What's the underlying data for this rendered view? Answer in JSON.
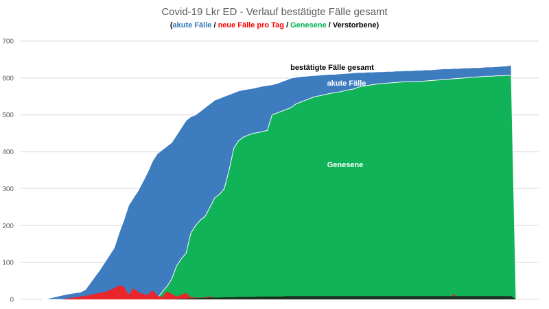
{
  "chart_data": {
    "type": "area",
    "title": "Covid-19 Lkr ED - Verlauf bestätigte Fälle gesamt",
    "subtitle": [
      {
        "text": "(",
        "color": "#000000"
      },
      {
        "text": "akute Fälle",
        "color": "#2e75b6"
      },
      {
        "text": " / ",
        "color": "#000000"
      },
      {
        "text": "neue Fälle pro Tag",
        "color": "#ff0000"
      },
      {
        "text": " / ",
        "color": "#000000"
      },
      {
        "text": "Genesene",
        "color": "#00b050"
      },
      {
        "text": " / ",
        "color": "#000000"
      },
      {
        "text": "Verstorbene",
        "color": "#000000"
      },
      {
        "text": ")",
        "color": "#000000"
      }
    ],
    "ylim": [
      0,
      700
    ],
    "yticks": [
      0,
      100,
      200,
      300,
      400,
      500,
      600,
      700
    ],
    "grid": true,
    "x_count": 100,
    "colors": {
      "total": "#3e7cc0",
      "recovered": "#10b357",
      "new": "#e8262b",
      "deaths": "#1b3320",
      "grid": "#d9d9d9"
    },
    "labels": {
      "total": "bestätigte Fälle gesamt",
      "active": "akute Fälle",
      "recovered": "Genesene"
    },
    "series": [
      {
        "key": "total",
        "values": [
          0,
          2,
          5,
          8,
          11,
          14,
          16,
          18,
          20,
          27,
          45,
          63,
          80,
          100,
          120,
          140,
          180,
          215,
          255,
          275,
          295,
          320,
          345,
          375,
          395,
          405,
          415,
          425,
          445,
          465,
          485,
          495,
          500,
          510,
          520,
          530,
          540,
          545,
          550,
          555,
          560,
          565,
          568,
          570,
          572,
          575,
          578,
          580,
          582,
          585,
          590,
          595,
          600,
          602,
          604,
          605,
          606,
          607,
          608,
          609,
          610,
          610,
          611,
          612,
          613,
          614,
          615,
          615,
          616,
          616,
          617,
          617,
          618,
          618,
          619,
          619,
          620,
          620,
          621,
          621,
          622,
          622,
          623,
          624,
          625,
          625,
          626,
          626,
          627,
          627,
          628,
          628,
          629,
          630,
          630,
          631,
          632,
          633,
          635,
          0
        ]
      },
      {
        "key": "recovered",
        "values": [
          0,
          0,
          0,
          0,
          0,
          0,
          0,
          0,
          0,
          0,
          0,
          0,
          0,
          0,
          0,
          0,
          0,
          0,
          0,
          0,
          0,
          0,
          0,
          0,
          2,
          20,
          35,
          55,
          90,
          110,
          125,
          180,
          200,
          215,
          225,
          250,
          275,
          285,
          300,
          350,
          410,
          430,
          440,
          445,
          450,
          452,
          455,
          458,
          500,
          505,
          510,
          515,
          520,
          530,
          535,
          540,
          545,
          550,
          552,
          555,
          558,
          560,
          562,
          565,
          568,
          570,
          575,
          578,
          580,
          582,
          584,
          585,
          586,
          587,
          588,
          589,
          590,
          590,
          590,
          591,
          592,
          593,
          594,
          595,
          596,
          597,
          598,
          599,
          600,
          601,
          602,
          603,
          604,
          605,
          605,
          606,
          606,
          607,
          607,
          0
        ]
      },
      {
        "key": "new",
        "values": [
          0,
          0,
          0,
          0,
          0,
          2,
          4,
          6,
          8,
          10,
          12,
          15,
          18,
          20,
          25,
          30,
          38,
          35,
          12,
          30,
          20,
          15,
          12,
          25,
          10,
          6,
          22,
          15,
          8,
          12,
          18,
          6,
          5,
          4,
          6,
          8,
          5,
          3,
          6,
          5,
          2,
          3,
          4,
          5,
          3,
          2,
          4,
          3,
          2,
          3,
          5,
          2,
          6,
          3,
          2,
          1,
          2,
          3,
          2,
          1,
          4,
          2,
          1,
          3,
          2,
          1,
          2,
          0,
          1,
          2,
          1,
          2,
          0,
          1,
          2,
          1,
          0,
          1,
          2,
          1,
          0,
          1,
          2,
          1,
          0,
          1,
          15,
          1,
          0,
          1,
          2,
          1,
          0,
          1,
          2,
          1,
          0,
          1,
          0,
          0
        ]
      },
      {
        "key": "deaths",
        "values": [
          0,
          0,
          0,
          0,
          0,
          0,
          0,
          0,
          0,
          0,
          0,
          0,
          0,
          0,
          0,
          0,
          0,
          0,
          0,
          0,
          0,
          0,
          0,
          0,
          0,
          0,
          1,
          1,
          1,
          2,
          2,
          3,
          3,
          4,
          4,
          5,
          5,
          5,
          6,
          6,
          6,
          7,
          7,
          7,
          7,
          8,
          8,
          8,
          8,
          8,
          8,
          9,
          9,
          9,
          9,
          9,
          9,
          9,
          9,
          9,
          9,
          9,
          9,
          9,
          9,
          9,
          9,
          9,
          9,
          9,
          9,
          9,
          9,
          9,
          9,
          9,
          9,
          9,
          9,
          9,
          9,
          9,
          9,
          9,
          9,
          9,
          9,
          9,
          9,
          9,
          9,
          9,
          9,
          9,
          9,
          9,
          9,
          9,
          9,
          0
        ]
      }
    ]
  }
}
